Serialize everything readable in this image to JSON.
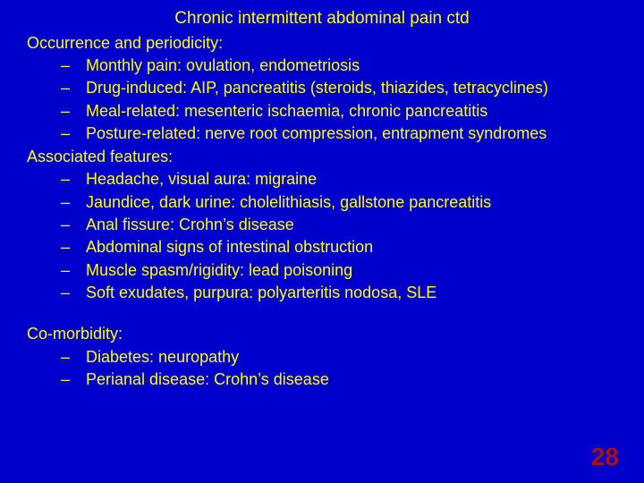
{
  "colors": {
    "background": "#0000cc",
    "text": "#ffff00",
    "pagenum": "#aa1111"
  },
  "typography": {
    "family": "Arial",
    "body_size_pt": 14,
    "title_size_pt": 14,
    "pagenum_size_pt": 20
  },
  "title": "Chronic intermittent abdominal pain ctd",
  "sections": [
    {
      "label": "Occurrence and periodicity:",
      "items": [
        "Monthly pain: ovulation, endometriosis",
        "Drug-induced: AIP, pancreatitis (steroids, thiazides, tetracyclines)",
        "Meal-related: mesenteric ischaemia, chronic pancreatitis",
        "Posture-related: nerve root compression, entrapment syndromes"
      ]
    },
    {
      "label": "Associated features:",
      "items": [
        "Headache, visual aura: migraine",
        "Jaundice, dark urine: cholelithiasis, gallstone pancreatitis",
        "Anal fissure: Crohn’s disease",
        "Abdominal signs of intestinal obstruction",
        "Muscle spasm/rigidity: lead poisoning",
        "Soft exudates, purpura: polyarteritis nodosa, SLE"
      ]
    },
    {
      "label": "Co-morbidity:",
      "gap_before": true,
      "items": [
        "Diabetes: neuropathy",
        "Perianal disease: Crohn’s disease"
      ]
    }
  ],
  "page_number": "28"
}
